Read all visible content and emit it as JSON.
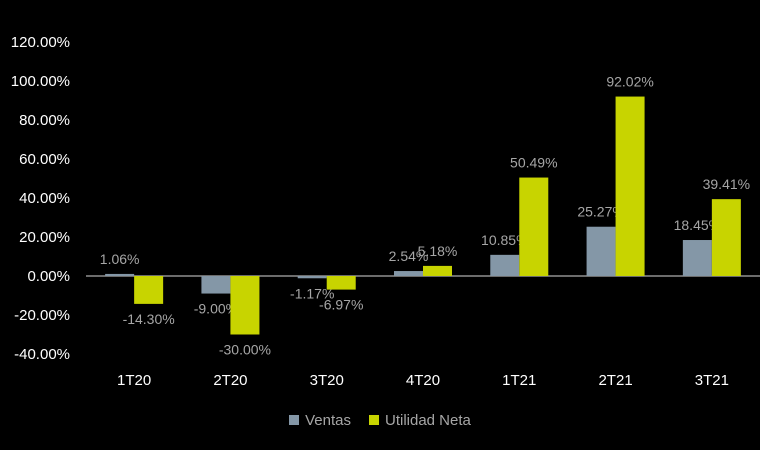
{
  "chart_data": {
    "type": "bar",
    "categories": [
      "1T20",
      "2T20",
      "3T20",
      "4T20",
      "1T21",
      "2T21",
      "3T21"
    ],
    "series": [
      {
        "name": "Ventas",
        "values": [
          1.06,
          -9.0,
          -1.17,
          2.54,
          10.85,
          25.27,
          18.45
        ],
        "labels": [
          "1.06%",
          "-9.00%",
          "-1.17%",
          "2.54%",
          "10.85%",
          "25.27%",
          "18.45%"
        ],
        "color": "#8497a7"
      },
      {
        "name": "Utilidad Neta",
        "values": [
          -14.3,
          -30.0,
          -6.97,
          5.18,
          50.49,
          92.02,
          39.41
        ],
        "labels": [
          "-14.30%",
          "-30.00%",
          "-6.97%",
          "5.18%",
          "50.49%",
          "92.02%",
          "39.41%"
        ],
        "color": "#c8d400"
      }
    ],
    "ylim": [
      -40,
      120
    ],
    "yticks": [
      120,
      100,
      80,
      60,
      40,
      20,
      0,
      -20,
      -40
    ],
    "ytick_labels": [
      "120.00%",
      "100.00%",
      "80.00%",
      "60.00%",
      "40.00%",
      "20.00%",
      "0.00%",
      "-20.00%",
      "-40.00%"
    ],
    "legend_position": "bottom",
    "grid": false,
    "background": "#000000",
    "axis_text_color": "#ffffff",
    "data_label_color": "#a6a6a6"
  }
}
